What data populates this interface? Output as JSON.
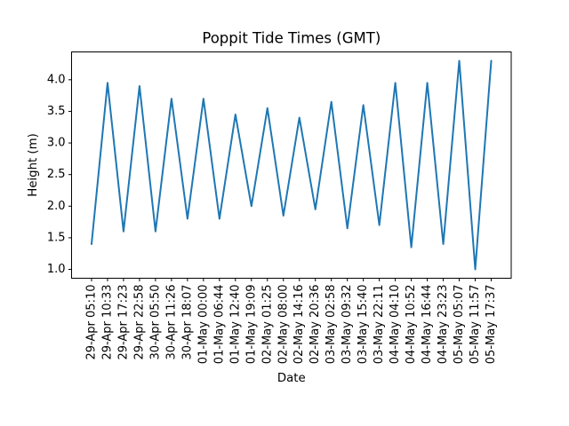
{
  "chart_data": {
    "type": "line",
    "title": "Poppit Tide Times (GMT)",
    "xlabel": "Date",
    "ylabel": "Height (m)",
    "categories": [
      "29-Apr 05:10",
      "29-Apr 10:33",
      "29-Apr 17:23",
      "29-Apr 22:58",
      "30-Apr 05:50",
      "30-Apr 11:26",
      "30-Apr 18:07",
      "01-May 00:00",
      "01-May 06:44",
      "01-May 12:40",
      "01-May 19:09",
      "02-May 01:25",
      "02-May 08:00",
      "02-May 14:16",
      "02-May 20:36",
      "03-May 02:58",
      "03-May 09:32",
      "03-May 15:40",
      "03-May 22:11",
      "04-May 04:10",
      "04-May 10:52",
      "04-May 16:44",
      "04-May 23:23",
      "05-May 05:07",
      "05-May 11:57",
      "05-May 17:37"
    ],
    "values": [
      1.4,
      3.95,
      1.6,
      3.9,
      1.6,
      3.7,
      1.8,
      3.7,
      1.8,
      3.45,
      2.0,
      3.55,
      1.85,
      3.4,
      1.95,
      3.65,
      1.65,
      3.6,
      1.7,
      3.95,
      1.35,
      3.95,
      1.4,
      4.3,
      1.0,
      4.3
    ],
    "yticks": [
      1.0,
      1.5,
      2.0,
      2.5,
      3.0,
      3.5,
      4.0
    ],
    "ytick_labels": [
      "1.0",
      "1.5",
      "2.0",
      "2.5",
      "3.0",
      "3.5",
      "4.0"
    ],
    "ylim": [
      0.86,
      4.44
    ],
    "x_tick_rotation": 90,
    "grid": false,
    "legend": null,
    "line_color": "#1f77b4",
    "axis_color": "#000000",
    "background_color": "#ffffff"
  }
}
